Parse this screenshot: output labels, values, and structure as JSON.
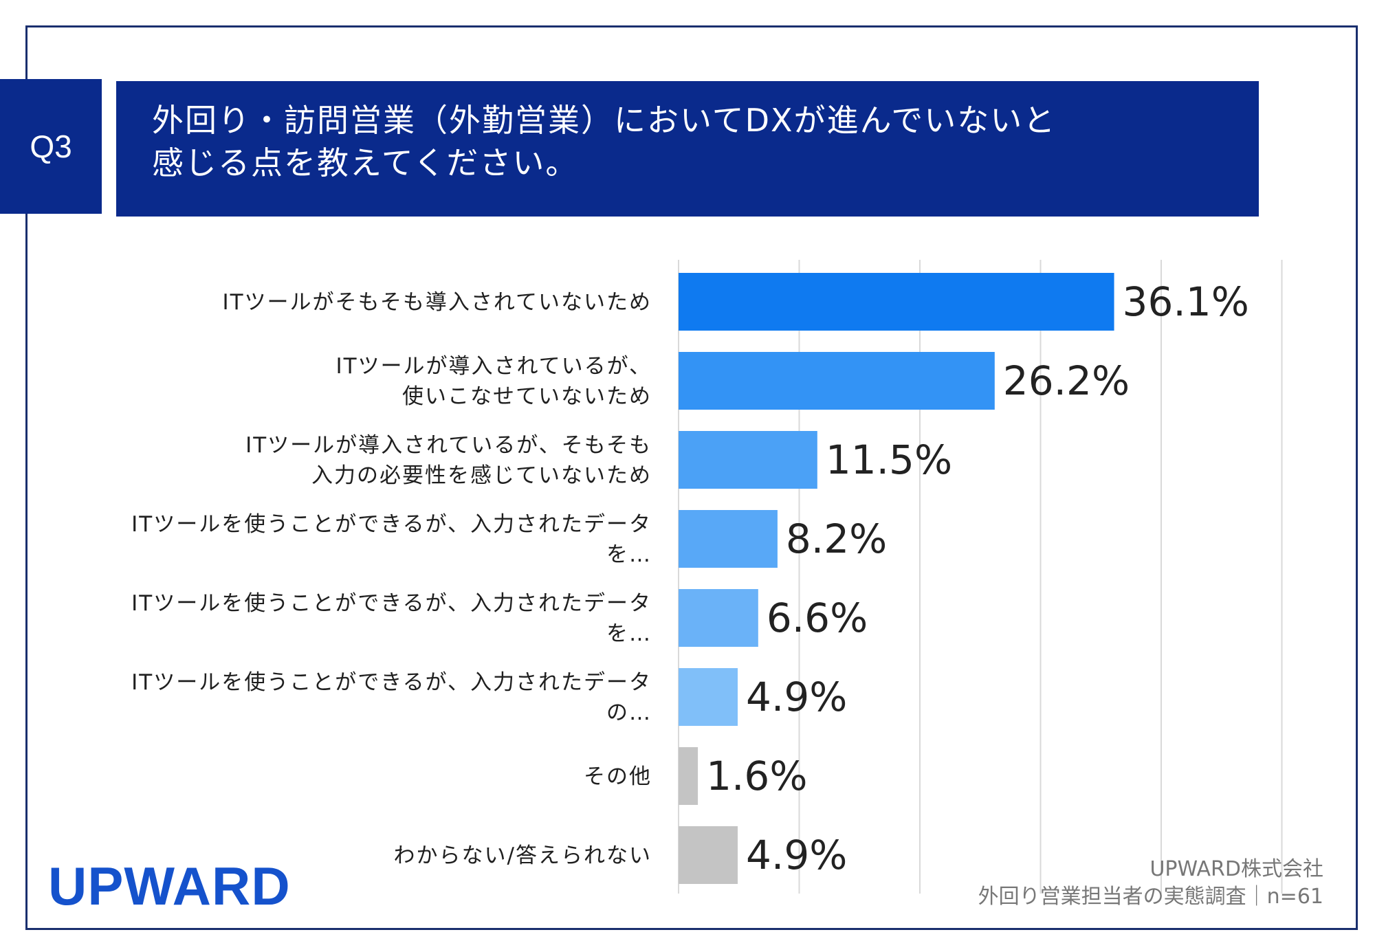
{
  "header": {
    "badge": "Q3",
    "title_line1": "外回り・訪問営業（外勤営業）においてDXが進んでいないと",
    "title_line2": "感じる点を教えてください。"
  },
  "colors": {
    "navy": "#0a2a8c",
    "badge": "#0a2a8c",
    "bar_palette": [
      "#0f7af0",
      "#3393f5",
      "#4ba1f6",
      "#58a8f7",
      "#6ab2f8",
      "#80bff9",
      "#c4c4c4",
      "#c4c4c4"
    ],
    "logo": "#1552cc"
  },
  "chart_data": {
    "type": "bar",
    "orientation": "horizontal",
    "title": "外回り・訪問営業（外勤営業）においてDXが進んでいないと感じる点を教えてください。",
    "categories": [
      [
        "ITツールがそもそも導入されていないため"
      ],
      [
        "ITツールが導入されているが、",
        "使いこなせていないため"
      ],
      [
        "ITツールが導入されているが、そもそも",
        "入力の必要性を感じていないため"
      ],
      [
        "ITツールを使うことができるが、入力されたデータ",
        "を…"
      ],
      [
        "ITツールを使うことができるが、入力されたデータ",
        "を…"
      ],
      [
        "ITツールを使うことができるが、入力されたデータ",
        "の…"
      ],
      [
        "その他"
      ],
      [
        "わからない/答えられない"
      ]
    ],
    "values": [
      36.1,
      26.2,
      11.5,
      8.2,
      6.6,
      4.9,
      1.6,
      4.9
    ],
    "value_labels": [
      "36.1%",
      "26.2%",
      "11.5%",
      "8.2%",
      "6.6%",
      "4.9%",
      "1.6%",
      "4.9%"
    ],
    "xlim": [
      0,
      50
    ],
    "grid_step": 10,
    "grid": true,
    "unit": "%"
  },
  "footer": {
    "logo": "UPWARD",
    "source_line1": "UPWARD株式会社",
    "source_line2": "外回り営業担当者の実態調査｜n=61"
  }
}
